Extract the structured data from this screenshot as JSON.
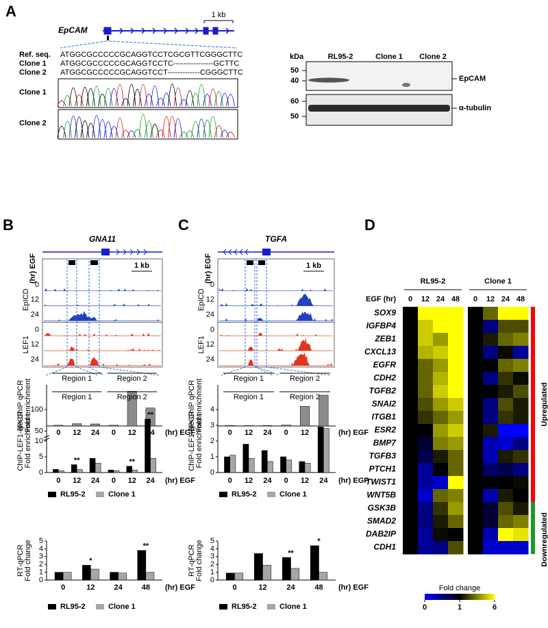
{
  "panel_a": {
    "label": "A",
    "gene": "EpCAM",
    "scale": "1 kb",
    "sequences": [
      {
        "name": "Ref. seq.",
        "seq": "ATGGCGCCCCCGCAGGTCCTCGCGTTCGGGCTTC"
      },
      {
        "name": "Clone 1",
        "seq": "ATGGCGCCCCCGCAGGTCCTC----------------GCTTC"
      },
      {
        "name": "Clone 2",
        "seq": "ATGGCGCCCCCGCAGGTCCT-------------CGGGCTTC"
      }
    ],
    "chromatograms": [
      "Clone 1",
      "Clone 2"
    ],
    "blot": {
      "unit": "kDa",
      "lanes": [
        "RL95-2",
        "Clone 1",
        "Clone 2"
      ],
      "markers": [
        "50",
        "40",
        "60",
        "50"
      ],
      "proteins": [
        "EpCAM",
        "α-tubulin"
      ]
    }
  },
  "panel_b": {
    "label": "B",
    "gene": "GNA11",
    "scale": "1 kb",
    "track_axis": "(hr) EGF",
    "tracks": [
      {
        "name": "EpICD",
        "color": "#2340c0",
        "times": [
          "0",
          "12",
          "24"
        ]
      },
      {
        "name": "LEF1",
        "color": "#e0361c",
        "times": [
          "0",
          "12",
          "24"
        ]
      }
    ]
  },
  "panel_c": {
    "label": "C",
    "gene": "TGFA",
    "scale": "1 kb",
    "track_axis": "(hr) EGF",
    "tracks": [
      {
        "name": "EpICD",
        "color": "#2340c0",
        "times": [
          "0",
          "12",
          "24"
        ]
      },
      {
        "name": "LEF1",
        "color": "#e0361c",
        "times": [
          "0",
          "12",
          "24"
        ]
      }
    ]
  },
  "panel_d": {
    "label": "D"
  },
  "chart_data": [
    {
      "type": "bar",
      "ylabel": [
        "Re-ChIP qPCR",
        "Fold enrichment"
      ],
      "groups": [
        "Region 1",
        "Region 2"
      ],
      "categories": [
        "0",
        "12",
        "24",
        "0",
        "12",
        "24"
      ],
      "xlabel": "(hr) EGF",
      "ylim": [
        0,
        16
      ],
      "series": [
        {
          "name": "Re-ChIP",
          "color": "#8c8c8c",
          "values": [
            0.3,
            0.9,
            0.8,
            0.3,
            13.5,
            7
          ]
        }
      ]
    },
    {
      "type": "bar",
      "ylabel": [
        "ChIP-LEF1-qPCR",
        "Fold enrichment"
      ],
      "groups": [
        "Region 1",
        "Region 2"
      ],
      "categories": [
        "0",
        "12",
        "24",
        "0",
        "12",
        "24"
      ],
      "xlabel": "(hr) EGF",
      "ylim": [
        0,
        100
      ],
      "ybreak": [
        10,
        40
      ],
      "yticks": [
        0,
        5,
        10,
        50,
        100
      ],
      "series": [
        {
          "name": "RL95-2",
          "color": "#000000",
          "values": [
            1,
            2.5,
            4.5,
            0.8,
            2,
            78
          ]
        },
        {
          "name": "Clone 1",
          "color": "#a6a6a6",
          "values": [
            0.6,
            1,
            3,
            0.6,
            0.8,
            4.5
          ]
        }
      ],
      "significance": [
        null,
        "**",
        null,
        null,
        "**",
        "**"
      ],
      "legend": true
    },
    {
      "type": "bar",
      "ylabel": [
        "RT-qPCR",
        "Fold change"
      ],
      "categories": [
        "0",
        "12",
        "24",
        "48"
      ],
      "xlabel": "(hr) EGF",
      "ylim": [
        0,
        5
      ],
      "yticks": [
        0,
        1,
        2,
        3,
        4,
        5
      ],
      "series": [
        {
          "name": "RL95-2",
          "color": "#000000",
          "values": [
            1,
            1.9,
            1,
            3.8
          ]
        },
        {
          "name": "Clone 1",
          "color": "#a6a6a6",
          "values": [
            1,
            1.4,
            0.9,
            1
          ]
        }
      ],
      "significance": [
        null,
        "*",
        null,
        "**"
      ],
      "legend": true
    },
    {
      "type": "bar",
      "ylabel": [
        "Re-ChIP qPCR",
        "Fold enrichment"
      ],
      "groups": [
        "Region 1",
        "Region 2"
      ],
      "categories": [
        "0",
        "12",
        "24",
        "0",
        "12",
        "24"
      ],
      "xlabel": "(hr) EGF",
      "ylim": [
        0,
        22
      ],
      "series": [
        {
          "name": "Re-ChIP",
          "color": "#8c8c8c",
          "values": [
            0.3,
            0.2,
            0.3,
            0.5,
            10.5,
            16.5
          ]
        }
      ]
    },
    {
      "type": "bar",
      "ylabel": [
        "ChIP-LEF1-qPCR",
        "Fold enrichment"
      ],
      "groups": [
        "Region 1",
        "Region 2"
      ],
      "categories": [
        "0",
        "12",
        "24",
        "0",
        "12",
        "24"
      ],
      "xlabel": "(hr) EGF",
      "ylim": [
        0,
        4
      ],
      "yticks": [
        0,
        1,
        2,
        3,
        4
      ],
      "series": [
        {
          "name": "RL95-2",
          "color": "#000000",
          "values": [
            1,
            1.8,
            1.4,
            1,
            0.7,
            2.9
          ]
        },
        {
          "name": "Clone 1",
          "color": "#a6a6a6",
          "values": [
            1.1,
            0.9,
            0.7,
            0.8,
            0.6,
            2.8
          ]
        }
      ],
      "legend": true
    },
    {
      "type": "bar",
      "ylabel": [
        "RT-qPCR",
        "Fold change"
      ],
      "categories": [
        "0",
        "12",
        "24",
        "48"
      ],
      "xlabel": "(hr) EGF",
      "ylim": [
        0,
        5
      ],
      "yticks": [
        0,
        1,
        2,
        3,
        4,
        5
      ],
      "series": [
        {
          "name": "RL95-2",
          "color": "#000000",
          "values": [
            0.9,
            3.4,
            2.9,
            4.4
          ]
        },
        {
          "name": "Clone 1",
          "color": "#a6a6a6",
          "values": [
            0.9,
            1.9,
            1.5,
            1.0
          ]
        }
      ],
      "significance": [
        null,
        null,
        "**",
        "*"
      ],
      "legend": true
    },
    {
      "type": "heatmap",
      "groups": [
        "RL95-2",
        "Clone 1"
      ],
      "xlabel": "EGF (hr)",
      "categories": [
        "0",
        "12",
        "24",
        "48",
        "0",
        "12",
        "24",
        "48"
      ],
      "rows": [
        "SOX9",
        "IGFBP4",
        "ZEB1",
        "CXCL13",
        "EGFR",
        "CDH2",
        "TGFB2",
        "SNAI2",
        "ITGB1",
        "ESR2",
        "BMP7",
        "TGFB3",
        "PTCH1",
        "TWIST1",
        "WNT5B",
        "GSK3B",
        "SMAD2",
        "DAB2IP",
        "CDH1"
      ],
      "values": [
        [
          1,
          6,
          6,
          6,
          1,
          3,
          6,
          6
        ],
        [
          1,
          5,
          6,
          6,
          1,
          0.5,
          2.5,
          2.5
        ],
        [
          1,
          5,
          4,
          6,
          1,
          1.5,
          3,
          3.5
        ],
        [
          1,
          4.5,
          5,
          6,
          1,
          0.5,
          1.2,
          0.4
        ],
        [
          1,
          3,
          4,
          6,
          1,
          1,
          3,
          3.5
        ],
        [
          1,
          3,
          4.5,
          6,
          1,
          0.5,
          2,
          1.2
        ],
        [
          1,
          3,
          5,
          6,
          1,
          1,
          1.5,
          2.5
        ],
        [
          1,
          2.5,
          4,
          5,
          1,
          0.5,
          2.5,
          1.5
        ],
        [
          1,
          2,
          3,
          4,
          1,
          0.5,
          2,
          1.5
        ],
        [
          1,
          1,
          4,
          5,
          1,
          1.5,
          0,
          0
        ],
        [
          1,
          0.8,
          3.5,
          4,
          1,
          0.3,
          0.2,
          0.5
        ],
        [
          1,
          0.7,
          1.5,
          3,
          1,
          0.3,
          1.5,
          2
        ],
        [
          1,
          0.4,
          1,
          3,
          1,
          0.6,
          0.7,
          0.5
        ],
        [
          1,
          0.4,
          0.2,
          6,
          1,
          1,
          1,
          1.2
        ],
        [
          1,
          0.2,
          3,
          3.5,
          1,
          0.3,
          1.5,
          1
        ],
        [
          1,
          0.5,
          2,
          4,
          1,
          0.8,
          2.5,
          1.5
        ],
        [
          1,
          0.5,
          1.5,
          3,
          1,
          0.8,
          3,
          3.5
        ],
        [
          1,
          0.4,
          1.2,
          1,
          1,
          0.3,
          6,
          5.5
        ],
        [
          1,
          0.4,
          0.5,
          2.5,
          1,
          0.2,
          0.2,
          0.2
        ]
      ],
      "row_groups": [
        {
          "name": "Upregulated",
          "color": "#ff0000",
          "first": "SOX9",
          "last": "WNT5B"
        },
        {
          "name": "Downregulated",
          "color": "#1a9a2a",
          "first": "GSK3B",
          "last": "CDH1"
        }
      ],
      "colorbar": {
        "title": "Fold change",
        "ticks": [
          0,
          1,
          6
        ],
        "colors": [
          "#0000ff",
          "#000000",
          "#ffff00"
        ]
      }
    }
  ]
}
